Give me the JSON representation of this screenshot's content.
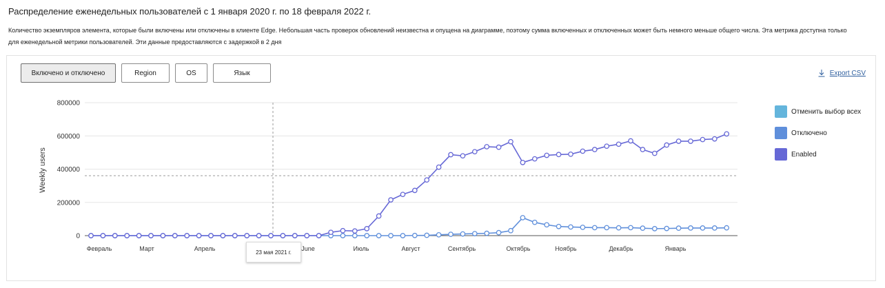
{
  "header": {
    "title": "Распределение еженедельных пользователей с 1 января 2020 г. по 18 февраля 2022 г.",
    "description": "Количество экземпляров элемента, которые были включены или отключены в клиенте Edge. Небольшая часть проверок обновлений неизвестна и опущена на диаграмме, поэтому сумма включенных и отключенных может быть немного меньше общего числа. Эта метрика доступна только для еженедельной метрики пользователей. Эти данные предоставляются с задержкой в 2 дня"
  },
  "tabs": [
    {
      "label": "Включено и отключено"
    },
    {
      "label": "Region"
    },
    {
      "label": "OS"
    },
    {
      "label": "Язык"
    }
  ],
  "export": {
    "label": "Export CSV",
    "icon": "download-icon"
  },
  "legend": {
    "items": [
      {
        "label": "Отменить выбор всех",
        "color": "#64b5dc"
      },
      {
        "label": "Отключено",
        "color": "#5f8fdb"
      },
      {
        "label": "Enabled",
        "color": "#6668d6"
      }
    ]
  },
  "tooltip": {
    "text": "23 мая 2021 г."
  },
  "chart_data": {
    "type": "line",
    "title": "",
    "ylabel": "Weekly users",
    "ylim": [
      0,
      800000
    ],
    "yticks": [
      0,
      200000,
      400000,
      600000,
      800000
    ],
    "ytick_labels": [
      "0",
      "200000",
      "400000",
      "600000",
      "800000"
    ],
    "x_month_labels": [
      "Февраль",
      "Март",
      "Апрель",
      "June",
      "Июль",
      "Август",
      "Сентябрь",
      "Октябрь",
      "Ноябрь",
      "Декабрь",
      "Январь"
    ],
    "grid": true,
    "legend_position": "right",
    "series": [
      {
        "name": "Enabled",
        "color": "#6668d6",
        "values": [
          0,
          0,
          0,
          0,
          0,
          0,
          0,
          0,
          0,
          0,
          0,
          0,
          0,
          0,
          0,
          0,
          0,
          0,
          0,
          0,
          20000,
          30000,
          28000,
          42000,
          118000,
          215000,
          248000,
          272000,
          335000,
          412000,
          487000,
          480000,
          505000,
          535000,
          532000,
          565000,
          440000,
          462000,
          483000,
          488000,
          490000,
          508000,
          518000,
          538000,
          550000,
          570000,
          518000,
          495000,
          545000,
          568000,
          568000,
          578000,
          582000,
          612000
        ]
      },
      {
        "name": "Отключено",
        "color": "#5f8fdb",
        "values": [
          0,
          0,
          0,
          0,
          0,
          0,
          0,
          0,
          0,
          0,
          0,
          0,
          0,
          0,
          0,
          0,
          0,
          0,
          0,
          0,
          0,
          0,
          0,
          0,
          0,
          0,
          0,
          1000,
          2000,
          5000,
          8000,
          10000,
          12000,
          14000,
          18000,
          30000,
          108000,
          80000,
          65000,
          55000,
          52000,
          50000,
          48000,
          48000,
          47000,
          48000,
          45000,
          42000,
          43000,
          45000,
          46000,
          46000,
          46000,
          47000
        ]
      }
    ]
  }
}
